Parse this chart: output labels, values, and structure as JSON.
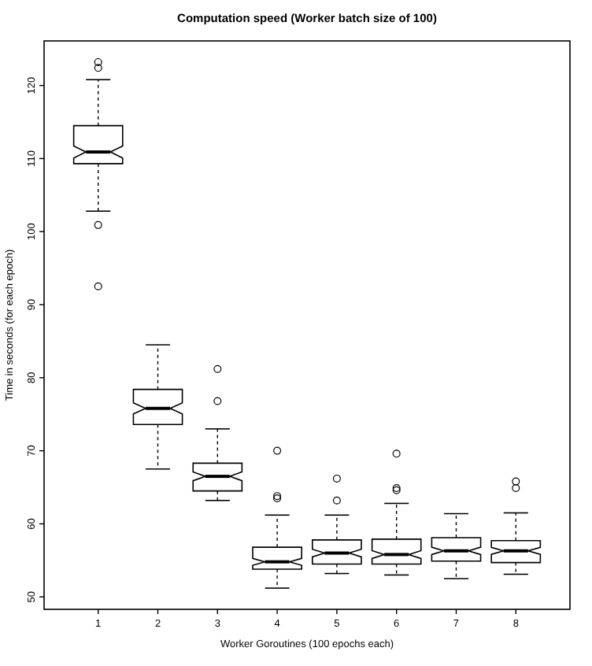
{
  "chart_data": {
    "type": "box",
    "title": "Computation speed (Worker batch size of 100)",
    "xlabel": "Worker Goroutines (100 epochs each)",
    "ylabel": "Time in seconds (for each epoch)",
    "categories": [
      "1",
      "2",
      "3",
      "4",
      "5",
      "6",
      "7",
      "8"
    ],
    "boxes": [
      {
        "low": 102.8,
        "q1": 109.3,
        "median": 110.9,
        "q3": 114.5,
        "high": 120.8,
        "outliers": [
          123.2,
          122.4,
          100.9,
          92.5
        ]
      },
      {
        "low": 67.5,
        "q1": 73.6,
        "median": 75.8,
        "q3": 78.4,
        "high": 84.5
      },
      {
        "low": 63.2,
        "q1": 64.5,
        "median": 66.5,
        "q3": 68.3,
        "high": 73.0,
        "outliers": [
          81.2,
          76.8
        ]
      },
      {
        "low": 51.2,
        "q1": 53.8,
        "median": 54.8,
        "q3": 56.8,
        "high": 61.2,
        "outliers": [
          70.0,
          63.8,
          63.5
        ]
      },
      {
        "low": 53.2,
        "q1": 54.5,
        "median": 56.0,
        "q3": 57.8,
        "high": 61.2,
        "outliers": [
          66.2,
          63.2
        ]
      },
      {
        "low": 53.0,
        "q1": 54.5,
        "median": 55.8,
        "q3": 57.9,
        "high": 62.8,
        "outliers": [
          69.6,
          64.9,
          64.6
        ]
      },
      {
        "low": 52.5,
        "q1": 54.9,
        "median": 56.3,
        "q3": 58.1,
        "high": 61.4
      },
      {
        "low": 53.1,
        "q1": 54.7,
        "median": 56.3,
        "q3": 57.7,
        "high": 61.5,
        "outliers": [
          65.8,
          64.9
        ]
      }
    ],
    "color": "#ffffff",
    "ylim": [
      48.3,
      126.1
    ],
    "yticks": [
      50,
      60,
      70,
      80,
      90,
      100,
      110,
      120
    ],
    "grid": false,
    "marker": "circle"
  }
}
